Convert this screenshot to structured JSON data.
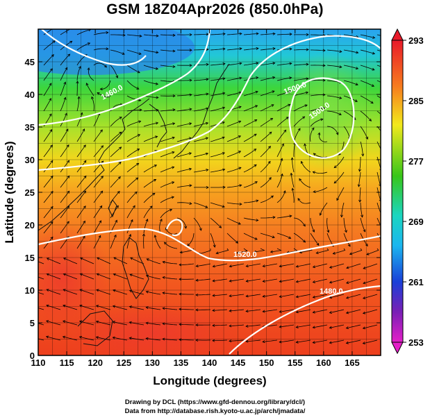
{
  "figure": {
    "title": "GSM 18Z04Apr2026 (850.0hPa)",
    "credit_lines": [
      "Drawing by DCL (https://www.gfd-dennou.org/library/dcl/)",
      "Data from http://database.rish.kyoto-u.ac.jp/arch/jmadata/"
    ]
  },
  "map": {
    "projection": "equirectangular",
    "lon_range": [
      110,
      170
    ],
    "lat_range": [
      0,
      50
    ],
    "xlabel": "Longitude (degrees)",
    "ylabel": "Latitude  (degrees)",
    "x_ticks": [
      110,
      115,
      120,
      125,
      130,
      135,
      140,
      145,
      150,
      155,
      160,
      165
    ],
    "y_ticks": [
      0,
      5,
      10,
      15,
      20,
      25,
      30,
      35,
      40,
      45
    ],
    "grid": true,
    "contour_labels": [
      "1520.0",
      "1480.0",
      "1500.0",
      "1460.0",
      "1500.0"
    ],
    "features": [
      "temperature shading",
      "geopotential height contours",
      "streamlines",
      "coastlines",
      "low-pressure center near 158E 35N",
      "vortex near 132E 21N"
    ]
  },
  "colorbar": {
    "labels": [
      "293",
      "285",
      "277",
      "269",
      "261",
      "253"
    ],
    "min": 253,
    "max": 293,
    "colors": [
      "#e81a2a",
      "#f78e1e",
      "#f2e91c",
      "#38c619",
      "#1bb6ef",
      "#1a3fd8",
      "#7a1fb5",
      "#e41fc8"
    ]
  }
}
